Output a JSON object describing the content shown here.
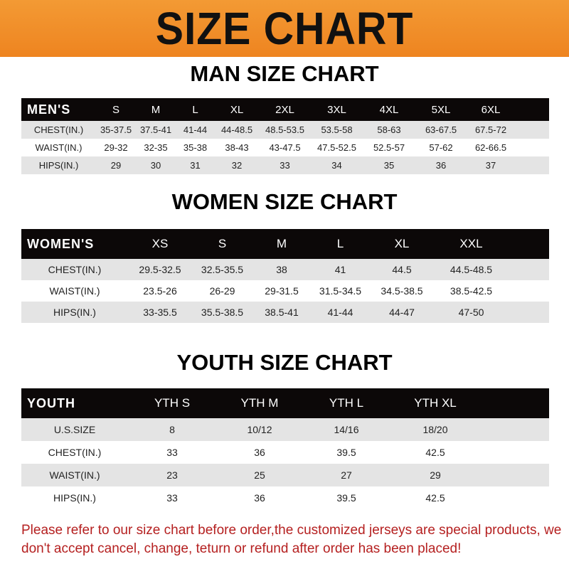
{
  "banner_title": "SIZE CHART",
  "men": {
    "title": "MAN SIZE CHART",
    "header": [
      "MEN'S",
      "S",
      "M",
      "L",
      "XL",
      "2XL",
      "3XL",
      "4XL",
      "5XL",
      "6XL"
    ],
    "rows": [
      [
        "CHEST(IN.)",
        "35-37.5",
        "37.5-41",
        "41-44",
        "44-48.5",
        "48.5-53.5",
        "53.5-58",
        "58-63",
        "63-67.5",
        "67.5-72"
      ],
      [
        "WAIST(IN.)",
        "29-32",
        "32-35",
        "35-38",
        "38-43",
        "43-47.5",
        "47.5-52.5",
        "52.5-57",
        "57-62",
        "62-66.5"
      ],
      [
        "HIPS(IN.)",
        "29",
        "30",
        "31",
        "32",
        "33",
        "34",
        "35",
        "36",
        "37"
      ]
    ]
  },
  "women": {
    "title": "WOMEN SIZE CHART",
    "header": [
      "WOMEN'S",
      "XS",
      "S",
      "M",
      "L",
      "XL",
      "XXL"
    ],
    "rows": [
      [
        "CHEST(IN.)",
        "29.5-32.5",
        "32.5-35.5",
        "38",
        "41",
        "44.5",
        "44.5-48.5"
      ],
      [
        "WAIST(IN.)",
        "23.5-26",
        "26-29",
        "29-31.5",
        "31.5-34.5",
        "34.5-38.5",
        "38.5-42.5"
      ],
      [
        "HIPS(IN.)",
        "33-35.5",
        "35.5-38.5",
        "38.5-41",
        "41-44",
        "44-47",
        "47-50"
      ]
    ]
  },
  "youth": {
    "title": "YOUTH SIZE CHART",
    "header": [
      "YOUTH",
      "YTH S",
      "YTH M",
      "YTH L",
      "YTH XL"
    ],
    "rows": [
      [
        "U.S.SIZE",
        "8",
        "10/12",
        "14/16",
        "18/20"
      ],
      [
        "CHEST(IN.)",
        "33",
        "36",
        "39.5",
        "42.5"
      ],
      [
        "WAIST(IN.)",
        "23",
        "25",
        "27",
        "29"
      ],
      [
        "HIPS(IN.)",
        "33",
        "36",
        "39.5",
        "42.5"
      ]
    ]
  },
  "note": "Please refer to our size chart before order,the customized jerseys are special products, we don't accept cancel, change, teturn or refund after order has been placed!",
  "colors": {
    "banner": "#ee8420",
    "header_row": "#0c0808",
    "stripe": "#e4e4e4",
    "note": "#b52020"
  }
}
